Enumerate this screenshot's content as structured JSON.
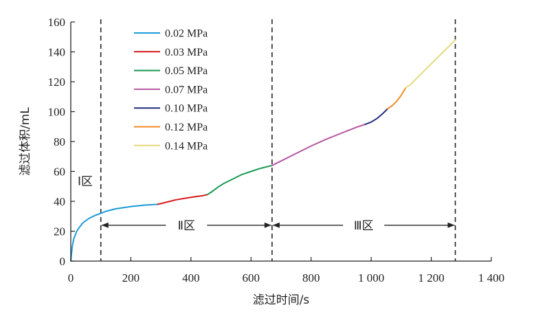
{
  "chart_data": {
    "type": "line",
    "xlabel": "滤过时间/s",
    "ylabel": "滤过体积/mL",
    "xlim": [
      0,
      1400
    ],
    "ylim": [
      0,
      160
    ],
    "x_ticks": [
      0,
      200,
      400,
      600,
      800,
      1000,
      1200,
      1400
    ],
    "x_tick_labels": [
      "0",
      "200",
      "400",
      "600",
      "800",
      "1 000",
      "1 200",
      "1 400"
    ],
    "y_ticks": [
      0,
      20,
      40,
      60,
      80,
      100,
      120,
      140,
      160
    ],
    "y_tick_labels": [
      "0",
      "20",
      "40",
      "60",
      "80",
      "100",
      "120",
      "140",
      "160"
    ],
    "legend_position": "top-left",
    "grid": false,
    "series": [
      {
        "name": "0.02 MPa",
        "color": "#1a9ad6",
        "x": [
          0,
          5,
          10,
          20,
          30,
          40,
          60,
          80,
          100,
          120,
          150,
          200,
          250,
          290
        ],
        "y": [
          0,
          10,
          15,
          20,
          23,
          25.5,
          28.5,
          30.5,
          32,
          33.5,
          35,
          36.5,
          37.5,
          38
        ]
      },
      {
        "name": "0.03 MPa",
        "color": "#d7191c",
        "x": [
          290,
          320,
          350,
          380,
          410,
          440,
          455
        ],
        "y": [
          38,
          39.5,
          41,
          42,
          43,
          43.8,
          44.5
        ]
      },
      {
        "name": "0.05 MPa",
        "color": "#1a9850",
        "x": [
          455,
          470,
          490,
          510,
          540,
          570,
          600,
          630,
          670
        ],
        "y": [
          44.5,
          46.5,
          49.5,
          52,
          55,
          58,
          60,
          62,
          64
        ]
      },
      {
        "name": "0.07 MPa",
        "color": "#b5559e",
        "x": [
          670,
          700,
          750,
          800,
          850,
          900,
          950,
          980
        ],
        "y": [
          64,
          67,
          72,
          77,
          81.5,
          85.5,
          89.5,
          91.5
        ]
      },
      {
        "name": "0.10 MPa",
        "color": "#1f2a7c",
        "x": [
          980,
          1000,
          1020,
          1040,
          1055
        ],
        "y": [
          91.5,
          93,
          95.5,
          99,
          102
        ]
      },
      {
        "name": "0.12 MPa",
        "color": "#f08a24",
        "x": [
          1055,
          1070,
          1085,
          1100,
          1115
        ],
        "y": [
          102,
          104,
          107,
          111,
          116
        ]
      },
      {
        "name": "0.14 MPa",
        "color": "#e6d97a",
        "x": [
          1115,
          1130,
          1150,
          1180,
          1210,
          1240,
          1270,
          1280
        ],
        "y": [
          116,
          118,
          122,
          128,
          134,
          140,
          146,
          148
        ]
      }
    ],
    "boundaries": [
      100,
      670,
      1280
    ],
    "regions": [
      {
        "label": "Ⅰ区",
        "x_start": 0,
        "x_end": 100,
        "y": 50
      },
      {
        "label": "Ⅱ区",
        "x_start": 100,
        "x_end": 670,
        "y": 24
      },
      {
        "label": "Ⅲ区",
        "x_start": 670,
        "x_end": 1280,
        "y": 24
      }
    ]
  }
}
